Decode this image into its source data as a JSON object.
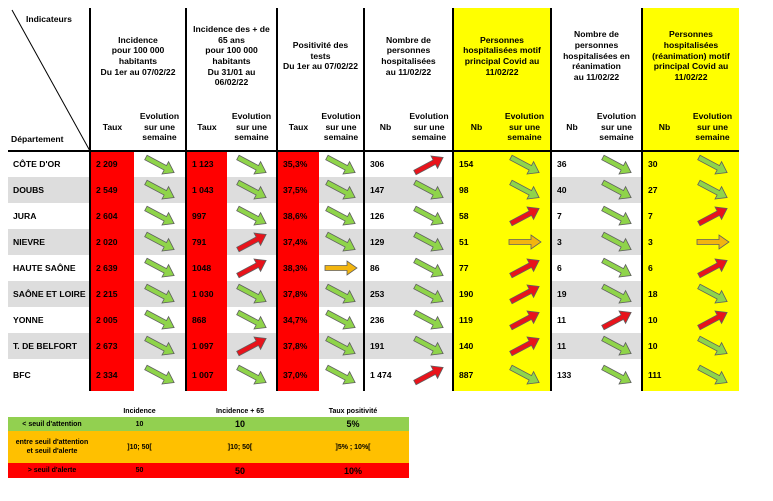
{
  "headers": {
    "indicateurs": "Indicateurs",
    "departement": "Département",
    "incidence": [
      "Incidence",
      "pour 100 000",
      "habitants",
      "Du 1er au 07/02/22"
    ],
    "incidence65": [
      "Incidence des + de",
      "65 ans",
      "pour 100 000",
      "habitants",
      "Du 31/01 au",
      "06/02/22"
    ],
    "positivite": [
      "Positivité des",
      "tests",
      "Du 1er au 07/02/22"
    ],
    "hospit": [
      "Nombre de",
      "personnes",
      "hospitalisées",
      "au 11/02/22"
    ],
    "hospit_covid": [
      "Personnes",
      "hospitalisées motif",
      "principal Covid au",
      "11/02/22"
    ],
    "rea": [
      "Nombre de",
      "personnes",
      "hospitalisées en",
      "réanimation",
      "au 11/02/22"
    ],
    "rea_covid": [
      "Personnes",
      "hospitalisées",
      "(réanimation) motif",
      "principal Covid au",
      "11/02/22"
    ],
    "taux": "Taux",
    "nb": "Nb",
    "evolution": [
      "Evolution",
      "sur une",
      "semaine"
    ]
  },
  "rows": [
    {
      "dept": "CÔTE D'OR",
      "inc": "2 209",
      "inc_a": "down",
      "inc65": "1 123",
      "inc65_a": "down",
      "pos": "35,3%",
      "pos_a": "down",
      "hosp": "306",
      "hosp_a": "up",
      "hc": "154",
      "hc_a": "down",
      "rea": "36",
      "rea_a": "down",
      "rc": "30",
      "rc_a": "down"
    },
    {
      "dept": "DOUBS",
      "inc": "2 549",
      "inc_a": "down",
      "inc65": "1 043",
      "inc65_a": "down",
      "pos": "37,5%",
      "pos_a": "down",
      "hosp": "147",
      "hosp_a": "down",
      "hc": "98",
      "hc_a": "down",
      "rea": "40",
      "rea_a": "down",
      "rc": "27",
      "rc_a": "down"
    },
    {
      "dept": "JURA",
      "inc": "2 604",
      "inc_a": "down",
      "inc65": "997",
      "inc65_a": "down",
      "pos": "38,6%",
      "pos_a": "down",
      "hosp": "126",
      "hosp_a": "down",
      "hc": "58",
      "hc_a": "up",
      "rea": "7",
      "rea_a": "down",
      "rc": "7",
      "rc_a": "up"
    },
    {
      "dept": "NIEVRE",
      "inc": "2 020",
      "inc_a": "down",
      "inc65": "791",
      "inc65_a": "up",
      "pos": "37,4%",
      "pos_a": "down",
      "hosp": "129",
      "hosp_a": "down",
      "hc": "51",
      "hc_a": "flat",
      "rea": "3",
      "rea_a": "down",
      "rc": "3",
      "rc_a": "flat"
    },
    {
      "dept": "HAUTE SAÔNE",
      "inc": "2 639",
      "inc_a": "down",
      "inc65": "1048",
      "inc65_a": "up",
      "pos": "38,3%",
      "pos_a": "flat",
      "hosp": "86",
      "hosp_a": "down",
      "hc": "77",
      "hc_a": "up",
      "rea": "6",
      "rea_a": "down",
      "rc": "6",
      "rc_a": "up"
    },
    {
      "dept": "SAÔNE ET LOIRE",
      "inc": "2 215",
      "inc_a": "down",
      "inc65": "1 030",
      "inc65_a": "down",
      "pos": "37,8%",
      "pos_a": "down",
      "hosp": "253",
      "hosp_a": "down",
      "hc": "190",
      "hc_a": "up",
      "rea": "19",
      "rea_a": "down",
      "rc": "18",
      "rc_a": "down"
    },
    {
      "dept": "YONNE",
      "inc": "2 005",
      "inc_a": "down",
      "inc65": "868",
      "inc65_a": "down",
      "pos": "34,7%",
      "pos_a": "down",
      "hosp": "236",
      "hosp_a": "down",
      "hc": "119",
      "hc_a": "up",
      "rea": "11",
      "rea_a": "up",
      "rc": "10",
      "rc_a": "up"
    },
    {
      "dept": "T. DE BELFORT",
      "inc": "2 673",
      "inc_a": "down",
      "inc65": "1 097",
      "inc65_a": "up",
      "pos": "37,8%",
      "pos_a": "down",
      "hosp": "191",
      "hosp_a": "down",
      "hc": "140",
      "hc_a": "up",
      "rea": "11",
      "rea_a": "down",
      "rc": "10",
      "rc_a": "down"
    },
    {
      "dept": "BFC",
      "inc": "2 334",
      "inc_a": "down",
      "inc65": "1 007",
      "inc65_a": "down",
      "pos": "37,0%",
      "pos_a": "down",
      "hosp": "1 474",
      "hosp_a": "up",
      "hc": "887",
      "hc_a": "down",
      "rea": "133",
      "rea_a": "down",
      "rc": "111",
      "rc_a": "down"
    }
  ],
  "legend": {
    "cols": [
      "Incidence",
      "Incidence + 65",
      "Taux positivité"
    ],
    "rows": [
      {
        "label": "< seuil d'attention",
        "v": [
          "10",
          "10",
          "5%"
        ]
      },
      {
        "label": "entre seuil d'attention et seuil d'alerte",
        "v": [
          " ]10; 50[",
          "]10; 50[",
          "]5% ; 10%["
        ]
      },
      {
        "label": "> seuil d'alerte",
        "v": [
          "50",
          "50",
          "10%"
        ]
      }
    ]
  },
  "colors": {
    "red": "#ff0000",
    "yellow": "#ffff00",
    "gray": "#dddddd",
    "arrow_down": "#8fd44a",
    "arrow_up": "#e8131b",
    "arrow_flat": "#f2b50f",
    "legend_green": "#92d050",
    "legend_orange": "#ffc000",
    "legend_red": "#ff0000"
  }
}
